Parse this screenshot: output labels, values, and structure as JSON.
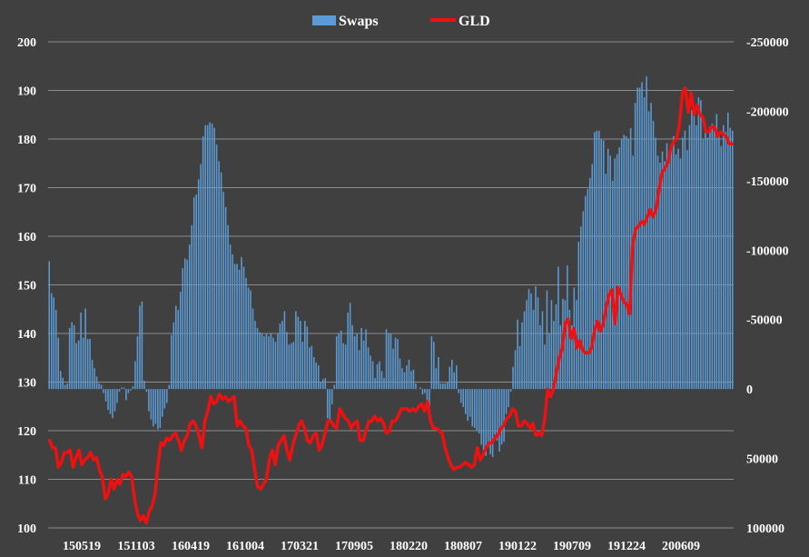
{
  "chart_data": {
    "type": "bar+line",
    "title": "",
    "legend": {
      "position": "top-center",
      "entries": [
        {
          "name": "Swaps",
          "type": "bar",
          "axis": "right",
          "color": "#5b9bd5"
        },
        {
          "name": "GLD",
          "type": "line",
          "axis": "left",
          "color": "#ee1111"
        }
      ]
    },
    "colors": {
      "background": "#404040",
      "grid": "#8c8c8c",
      "bar": "#5b9bd5",
      "line": "#ee1111",
      "text": "#ffffff"
    },
    "left_axis": {
      "range": [
        100,
        200
      ],
      "ticks": [
        "100",
        "110",
        "120",
        "130",
        "140",
        "150",
        "160",
        "170",
        "180",
        "190",
        "200"
      ]
    },
    "right_axis": {
      "range": [
        100000,
        -250000
      ],
      "reversed": true,
      "ticks": [
        "100000",
        "50000",
        "0",
        "-50000",
        "-100000",
        "-150000",
        "-200000",
        "-250000"
      ]
    },
    "x_axis": {
      "tick_labels": [
        "150519",
        "151103",
        "160419",
        "161004",
        "170321",
        "170905",
        "180220",
        "180807",
        "190122",
        "190709",
        "191224",
        "200609"
      ]
    },
    "grid": true,
    "series": [
      {
        "name": "Swaps",
        "axis": "right",
        "values": [
          -92000,
          -69000,
          -66000,
          -57000,
          -37000,
          -13000,
          -8000,
          -3000,
          -4000,
          -44000,
          -48000,
          -46000,
          -33000,
          -35000,
          -55000,
          -37000,
          -58000,
          -36000,
          -36000,
          -21000,
          -15000,
          -9000,
          -4000,
          -3000,
          3000,
          9000,
          15000,
          18000,
          21000,
          16000,
          10000,
          2000,
          -1000,
          -1000,
          8000,
          3000,
          1000,
          -2000,
          -20000,
          -38000,
          -60000,
          -63000,
          -6000,
          2000,
          16000,
          22000,
          27000,
          25000,
          29000,
          28000,
          20000,
          14000,
          10000,
          -3000,
          -39000,
          -48000,
          -60000,
          -57000,
          -70000,
          -87000,
          -94000,
          -93000,
          -104000,
          -118000,
          -138000,
          -140000,
          -151000,
          -162000,
          -182000,
          -190000,
          -190000,
          -192000,
          -191000,
          -188000,
          -176000,
          -164000,
          -156000,
          -142000,
          -131000,
          -118000,
          -104000,
          -97000,
          -90000,
          -90000,
          -86000,
          -95000,
          -88000,
          -80000,
          -73000,
          -71000,
          -58000,
          -49000,
          -44000,
          -41000,
          -40000,
          -38000,
          -40000,
          -38000,
          -40000,
          -37000,
          -34000,
          -40000,
          -47000,
          -49000,
          -56000,
          -41000,
          -32000,
          -33000,
          -34000,
          -56000,
          -52000,
          -49000,
          -34000,
          -49000,
          -45000,
          -30000,
          -31000,
          -23000,
          -19000,
          -17000,
          -5000,
          -7000,
          -8000,
          21000,
          22000,
          11000,
          -3000,
          -38000,
          -40000,
          -42000,
          -33000,
          -32000,
          -55000,
          -62000,
          -46000,
          -38000,
          -40000,
          -28000,
          -44000,
          -35000,
          -43000,
          -30000,
          -24000,
          -20000,
          -8000,
          -18000,
          -20000,
          -13000,
          -8000,
          -43000,
          -40000,
          -40000,
          -29000,
          -37000,
          -36000,
          -22000,
          -15000,
          -12000,
          -17000,
          -21000,
          -13000,
          -14000,
          -4000,
          0,
          -1000,
          4000,
          3000,
          12000,
          13000,
          -38000,
          -34000,
          -15000,
          -23000,
          -4000,
          -4000,
          -4000,
          -5000,
          -16000,
          -21000,
          -12000,
          -17000,
          3000,
          10000,
          13000,
          18000,
          23000,
          20000,
          27000,
          28000,
          30000,
          32000,
          40000,
          44000,
          48000,
          42000,
          47000,
          49000,
          33000,
          37000,
          45000,
          40000,
          38000,
          18000,
          13000,
          2000,
          -16000,
          -28000,
          -50000,
          -31000,
          -48000,
          -56000,
          -64000,
          -72000,
          -69000,
          -57000,
          -74000,
          -66000,
          -46000,
          -56000,
          -32000,
          -71000,
          -40000,
          -64000,
          -49000,
          -61000,
          -88000,
          -46000,
          -65000,
          -64000,
          -89000,
          -57000,
          -46000,
          -73000,
          -64000,
          -106000,
          -117000,
          -128000,
          -139000,
          -144000,
          -152000,
          -162000,
          -185000,
          -186000,
          -186000,
          -180000,
          -179000,
          -155000,
          -173000,
          -168000,
          -150000,
          -166000,
          -169000,
          -174000,
          -180000,
          -183000,
          -182000,
          -180000,
          -188000,
          -168000,
          -206000,
          -217000,
          -217000,
          -221000,
          -210000,
          -225000,
          -200000,
          -206000,
          -193000,
          -181000,
          -168000,
          -163000,
          -171000,
          -164000,
          -177000,
          -171000,
          -174000,
          -182000,
          -169000,
          -173000,
          -166000,
          -181000,
          -186000,
          -172000,
          -190000,
          -201000,
          -199000,
          -190000,
          -210000,
          -208000,
          -180000,
          -186000,
          -181000,
          -189000,
          -191000,
          -186000,
          -198000,
          -182000,
          -175000,
          -190000,
          -185000,
          -199000,
          -188000,
          -186000
        ]
      },
      {
        "name": "GLD",
        "axis": "left",
        "values": [
          118,
          116.5,
          116.5,
          112.5,
          113.5,
          115.5,
          115.5,
          116,
          112.5,
          114.5,
          116,
          113,
          114,
          114.5,
          115.5,
          114,
          114.5,
          112,
          110.5,
          106,
          107,
          110,
          108,
          110,
          109,
          111,
          110.5,
          111.5,
          110.5,
          106,
          103,
          101.5,
          102.5,
          101,
          103.5,
          104.5,
          107,
          113,
          117.5,
          117,
          118.5,
          118,
          119,
          119.5,
          118,
          116,
          118,
          119,
          121.5,
          122,
          121,
          119,
          116.5,
          122,
          124,
          127,
          125.5,
          126,
          127.5,
          126.5,
          127,
          126,
          126.5,
          127,
          121,
          122,
          121,
          120.5,
          117,
          116,
          112,
          108.5,
          108,
          109,
          110,
          114,
          116,
          113,
          117,
          118,
          119,
          116,
          114,
          117,
          119,
          121,
          122,
          120.5,
          118,
          117.5,
          119,
          119.5,
          116,
          117,
          119.5,
          122,
          122,
          121,
          120.5,
          124.5,
          123.5,
          122.5,
          122,
          120.5,
          121.5,
          122,
          118,
          118,
          120,
          122,
          122,
          123,
          122,
          122.5,
          121.5,
          119.5,
          120,
          122,
          122,
          123,
          124.5,
          124.5,
          124.5,
          124,
          124.5,
          124,
          125,
          125.5,
          124,
          126,
          122,
          120.5,
          120.5,
          120,
          119.5,
          116.5,
          114.5,
          113,
          112,
          112.5,
          112.5,
          113,
          113.5,
          113,
          112.5,
          113,
          116.5,
          114,
          115,
          116.5,
          117.5,
          117.5,
          118.5,
          119,
          120.5,
          121,
          122.5,
          123,
          124.5,
          124,
          121,
          121,
          122,
          121.5,
          120.5,
          121.5,
          119,
          119.5,
          119,
          122.5,
          128.5,
          127,
          128.5,
          132,
          135,
          137,
          142,
          143,
          139,
          141,
          137,
          138.5,
          136.5,
          136,
          136,
          137,
          140.5,
          142.5,
          140.5,
          142,
          145.5,
          148,
          149,
          142,
          149.5,
          148,
          146.5,
          146,
          144,
          158,
          161.5,
          162,
          163,
          162.5,
          164,
          165.5,
          164,
          165.5,
          169.5,
          173,
          174,
          175,
          178,
          179.5,
          180,
          183,
          189.5,
          190.5,
          185.5,
          189.5,
          185,
          187,
          185,
          184.5,
          181.5,
          181.5,
          182.5,
          182.5,
          180.5,
          181.5,
          181,
          180.5,
          179,
          179
        ]
      }
    ]
  }
}
